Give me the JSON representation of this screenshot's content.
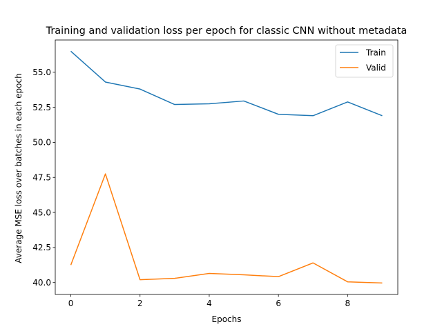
{
  "chart_data": {
    "type": "line",
    "title": "Training and validation loss per epoch for classic CNN without metadata",
    "xlabel": "Epochs",
    "ylabel": "Average MSE loss over batches in each epoch",
    "x": [
      0,
      1,
      2,
      3,
      4,
      5,
      6,
      7,
      8,
      9
    ],
    "xlim": [
      -0.45,
      9.45
    ],
    "ylim": [
      39.15,
      57.3
    ],
    "xticks": [
      0,
      2,
      4,
      6,
      8
    ],
    "yticks": [
      40.0,
      42.5,
      45.0,
      47.5,
      50.0,
      52.5,
      55.0
    ],
    "grid": false,
    "legend": "upper right",
    "series": [
      {
        "name": "Train",
        "color": "#1f77b4",
        "values": [
          56.5,
          54.3,
          53.8,
          52.7,
          52.75,
          52.95,
          52.0,
          51.9,
          52.88,
          51.9
        ]
      },
      {
        "name": "Valid",
        "color": "#ff7f0e",
        "values": [
          41.25,
          47.75,
          40.2,
          40.3,
          40.65,
          40.55,
          40.42,
          41.4,
          40.05,
          39.97
        ]
      }
    ]
  }
}
